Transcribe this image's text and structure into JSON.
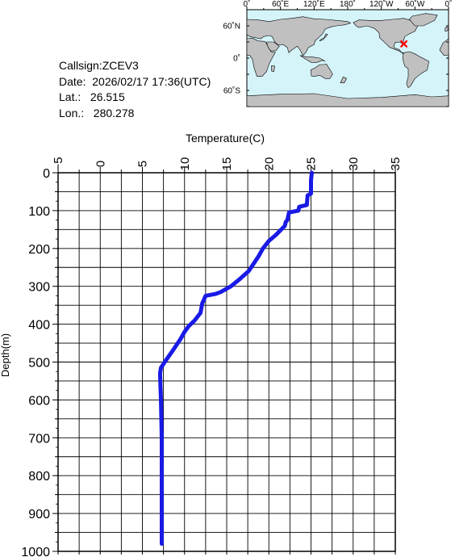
{
  "info": {
    "callsign": "Callsign:ZCEV3",
    "date": "Date:  2026/02/17 17:36(UTC)",
    "lat": "Lat.:   26.515",
    "lon": "Lon.:   280.278"
  },
  "map": {
    "lon_labels": [
      "0˚",
      "60˚E",
      "120˚E",
      "180˚",
      "120˚W",
      "60˚W",
      "0˚"
    ],
    "lat_labels": [
      "60˚N",
      "0˚",
      "60˚S"
    ],
    "marker": {
      "lat": 26.515,
      "lon": 280.278
    },
    "colors": {
      "ocean": "#d4f4fa",
      "land": "#c0c0c0",
      "marker": "#ff0000"
    }
  },
  "chart_data": {
    "type": "line",
    "xlabel": "Temperature(C)",
    "ylabel": "Depth(m)",
    "xlim": [
      -5,
      35
    ],
    "ylim": [
      0,
      1000
    ],
    "x_ticks": [
      "−5",
      "0",
      "5",
      "10",
      "15",
      "20",
      "25",
      "30",
      "35"
    ],
    "y_ticks": [
      "0",
      "100",
      "200",
      "300",
      "400",
      "500",
      "600",
      "700",
      "800",
      "900",
      "1000"
    ],
    "grid": true,
    "series": [
      {
        "color": "#1a1ae6",
        "x": [
          25.1,
          25.0,
          25.0,
          24.6,
          24.5,
          23.6,
          23.5,
          22.4,
          22.2,
          22.0,
          21.9,
          20.8,
          20.0,
          19.3,
          18.8,
          18.2,
          17.6,
          16.6,
          15.5,
          14.3,
          13.7,
          12.5,
          12.1,
          11.9,
          11.2,
          10.5,
          10.0,
          9.5,
          8.6,
          7.8,
          7.2,
          7.1,
          7.2,
          7.3,
          7.3,
          7.3
        ],
        "y": [
          0,
          20,
          55,
          60,
          85,
          90,
          100,
          105,
          125,
          130,
          140,
          165,
          180,
          200,
          220,
          240,
          260,
          280,
          300,
          315,
          320,
          325,
          345,
          370,
          390,
          405,
          420,
          440,
          470,
          495,
          515,
          530,
          600,
          700,
          800,
          980
        ]
      }
    ]
  }
}
